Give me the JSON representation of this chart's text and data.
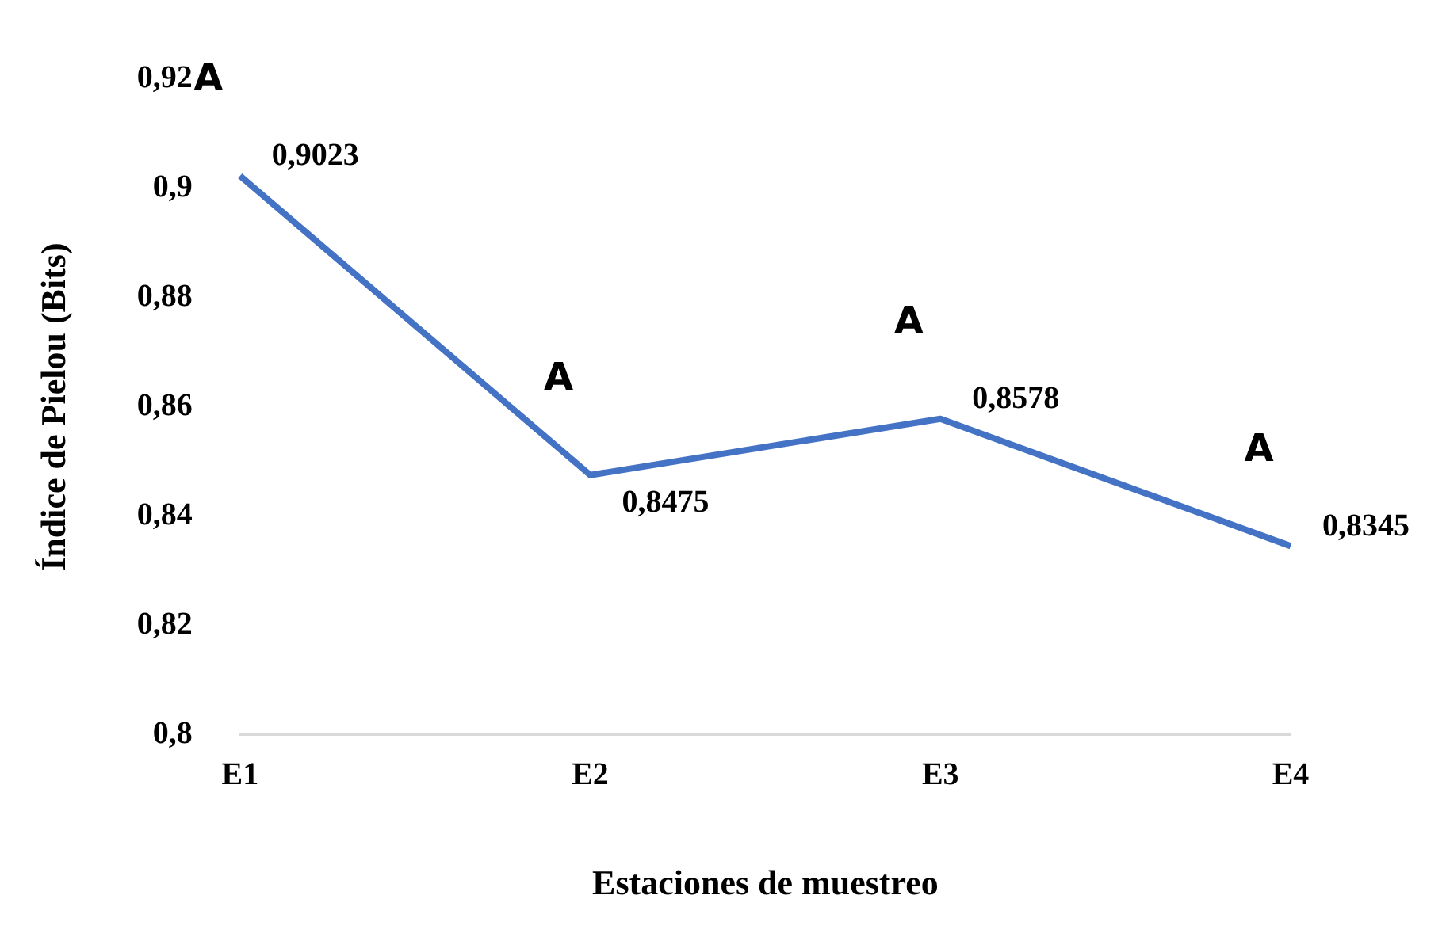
{
  "chart_data": {
    "type": "line",
    "xlabel": "Estaciones de muestreo",
    "ylabel": "Índice de Pielou (Bits)",
    "categories": [
      "E1",
      "E2",
      "E3",
      "E4"
    ],
    "series": [
      {
        "color": "#4472c4",
        "values": [
          0.9023,
          0.8475,
          0.8578,
          0.8345
        ],
        "value_labels": [
          "0,9023",
          "0,8475",
          "0,8578",
          "0,8345"
        ]
      }
    ],
    "ylim": [
      0.8,
      0.92
    ],
    "yticks": [
      {
        "value": 0.8,
        "label": "0,8"
      },
      {
        "value": 0.82,
        "label": "0,82"
      },
      {
        "value": 0.84,
        "label": "0,84"
      },
      {
        "value": 0.86,
        "label": "0,86"
      },
      {
        "value": 0.88,
        "label": "0,88"
      },
      {
        "value": 0.9,
        "label": "0,9"
      },
      {
        "value": 0.92,
        "label": "0,92"
      }
    ],
    "annotations": [
      "A",
      "A",
      "A",
      "A"
    ],
    "grid": false,
    "legend": false,
    "marker": "none",
    "line_style": "solid"
  }
}
